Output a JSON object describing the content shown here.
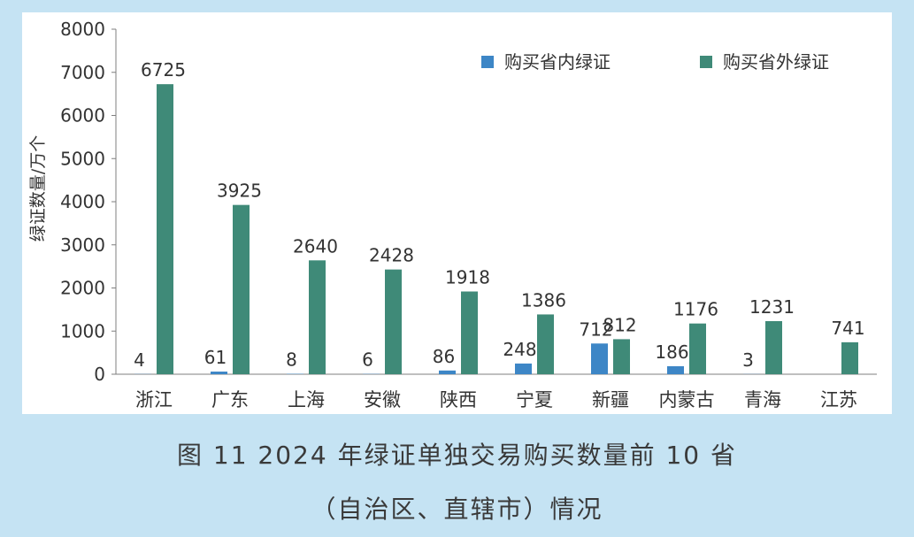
{
  "caption": {
    "line1": "图 11   2024 年绿证单独交易购买数量前 10 省",
    "line2": "（自治区、直辖市）情况"
  },
  "colors": {
    "page_background": "#c5e3f3",
    "panel_background": "#ffffff",
    "in_province": "#3d86c6",
    "out_province": "#3f8a78"
  },
  "chart_data": {
    "type": "bar",
    "title": "",
    "xlabel": "",
    "ylabel": "绿证数量/万个",
    "ylim": [
      0,
      8000
    ],
    "yticks": [
      0,
      1000,
      2000,
      3000,
      4000,
      5000,
      6000,
      7000,
      8000
    ],
    "grid": false,
    "legend_position": "top-right",
    "categories": [
      "浙江",
      "广东",
      "上海",
      "安徽",
      "陕西",
      "宁夏",
      "新疆",
      "内蒙古",
      "青海",
      "江苏"
    ],
    "series": [
      {
        "name": "购买省内绿证",
        "color": "#3d86c6",
        "values": [
          4,
          61,
          8,
          6,
          86,
          248,
          712,
          186,
          3,
          0
        ],
        "labels": [
          "4",
          "61",
          "8",
          "6",
          "86",
          "248",
          "712",
          "186",
          "3",
          ""
        ]
      },
      {
        "name": "购买省外绿证",
        "color": "#3f8a78",
        "values": [
          6725,
          3925,
          2640,
          2428,
          1918,
          1386,
          812,
          1176,
          1231,
          741
        ],
        "labels": [
          "6725",
          "3925",
          "2640",
          "2428",
          "1918",
          "1386",
          "812",
          "1176",
          "1231",
          "741"
        ]
      }
    ]
  }
}
